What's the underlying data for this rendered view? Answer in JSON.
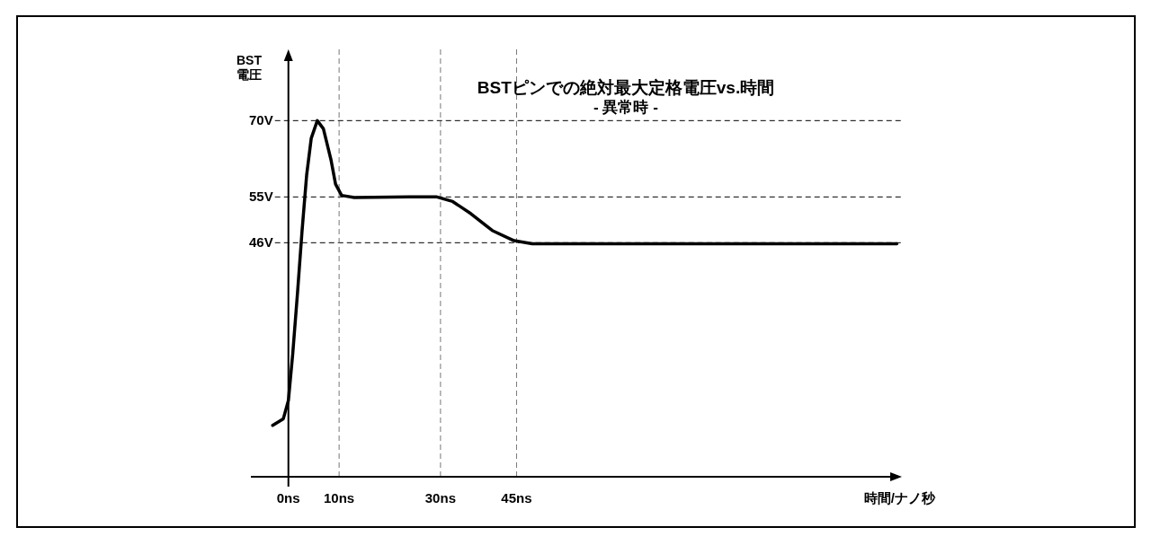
{
  "chart_data": {
    "type": "line",
    "title": "BSTピンでの絶対最大定格電圧vs.時間",
    "subtitle": "- 異常時 -",
    "ylabel": "BST\n電圧",
    "xlabel": "時間/ナノ秒",
    "xlim": [
      -7.4,
      121
    ],
    "ylim": [
      0,
      84
    ],
    "xticks": [
      {
        "value": 0,
        "label": "0ns"
      },
      {
        "value": 10,
        "label": "10ns"
      },
      {
        "value": 30,
        "label": "30ns"
      },
      {
        "value": 45,
        "label": "45ns"
      }
    ],
    "yticks": [
      {
        "value": 46,
        "label": "46V"
      },
      {
        "value": 55,
        "label": "55V"
      },
      {
        "value": 70,
        "label": "70V"
      }
    ],
    "series": [
      {
        "color": "#000000",
        "x": [
          -3.1,
          -1.0,
          0,
          0.85,
          1.8,
          2.7,
          3.6,
          4.5,
          5.7,
          6.9,
          8.4,
          9.3,
          10.5,
          13,
          23.9,
          29.3,
          32.4,
          36,
          40.2,
          44.5,
          48.1,
          60,
          80,
          100,
          120
        ],
        "values": [
          10.1,
          11.4,
          15,
          24.1,
          36.2,
          48.4,
          59.3,
          66.5,
          70,
          68.4,
          62.3,
          57.5,
          55.3,
          54.9,
          55,
          55,
          54.1,
          51.7,
          48.4,
          46.4,
          45.8,
          45.8,
          45.8,
          45.8,
          45.8
        ]
      }
    ],
    "ref_lines": [
      {
        "axis": "y",
        "value": 70,
        "line_style": "dashed",
        "color": "#000000"
      },
      {
        "axis": "y",
        "value": 55,
        "line_style": "dashed",
        "color": "#000000"
      },
      {
        "axis": "y",
        "value": 46,
        "line_style": "dashed",
        "color": "#000000"
      },
      {
        "axis": "x",
        "value": 10,
        "line_style": "dashed",
        "color": "#777777"
      },
      {
        "axis": "x",
        "value": 30,
        "line_style": "dashed",
        "color": "#777777"
      },
      {
        "axis": "x",
        "value": 45,
        "line_style": "dashed",
        "color": "#777777"
      }
    ],
    "grid": false,
    "marker": "none",
    "line_style": "solid"
  }
}
